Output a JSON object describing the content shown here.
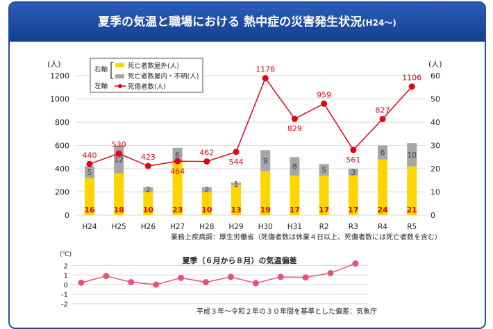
{
  "title": {
    "main": "夏季の気温と職場における 熱中症の災害発生状況",
    "suffix": "(H24〜)"
  },
  "colors": {
    "outdoor": "#ffd500",
    "indoor": "#a6a6a6",
    "casualties": "#e60012",
    "temperature": "#e8546f",
    "banner": "#1e4fa3"
  },
  "chart_data": [
    {
      "type": "bar+line",
      "categories": [
        "H24",
        "H25",
        "H26",
        "H27",
        "H28",
        "H29",
        "H30",
        "H31",
        "R2",
        "R3",
        "R4",
        "R5"
      ],
      "left_axis": {
        "unit": "(人)",
        "ylim": [
          0,
          1200
        ],
        "ticks": [
          "0",
          "200",
          "400",
          "600",
          "800",
          "1000",
          "1200"
        ]
      },
      "right_axis": {
        "unit": "(人)",
        "ylim": [
          0,
          60
        ],
        "ticks": [
          "0",
          "10",
          "20",
          "30",
          "40",
          "50",
          "60"
        ]
      },
      "legend": {
        "right_axis_label": "右軸",
        "left_axis_label": "左軸",
        "placement": "top-left"
      },
      "series": [
        {
          "name": "死亡者数屋外(人)",
          "axis": "right",
          "kind": "stacked-bar",
          "values": [
            16,
            18,
            10,
            23,
            10,
            13,
            19,
            17,
            17,
            17,
            24,
            21
          ]
        },
        {
          "name": "死亡者数屋内・不明(人)",
          "axis": "right",
          "kind": "stacked-bar",
          "values": [
            5,
            12,
            2,
            6,
            2,
            1,
            9,
            8,
            5,
            3,
            6,
            10
          ]
        },
        {
          "name": "死傷者数(人)",
          "axis": "left",
          "kind": "line",
          "values": [
            440,
            530,
            423,
            464,
            462,
            544,
            1178,
            829,
            959,
            561,
            827,
            1106
          ]
        }
      ],
      "grid": true,
      "source_note": "業務上疾病調：厚生労働省（死傷者数は休業４日以上、死傷者数には死亡者数を含む）"
    },
    {
      "type": "line",
      "title": "夏季（６月から８月）の気温偏差",
      "y_unit": "(℃)",
      "ylim": [
        -2,
        2
      ],
      "ticks": [
        "-2",
        "-1",
        "0",
        "1",
        "2"
      ],
      "values": [
        0.2,
        0.9,
        0.25,
        0.0,
        0.7,
        0.25,
        0.8,
        0.15,
        0.8,
        0.75,
        1.2,
        2.2
      ],
      "grid": true,
      "source_note": "平成３年～令和２年の３０年間を基準とした偏差：気象庁"
    }
  ]
}
